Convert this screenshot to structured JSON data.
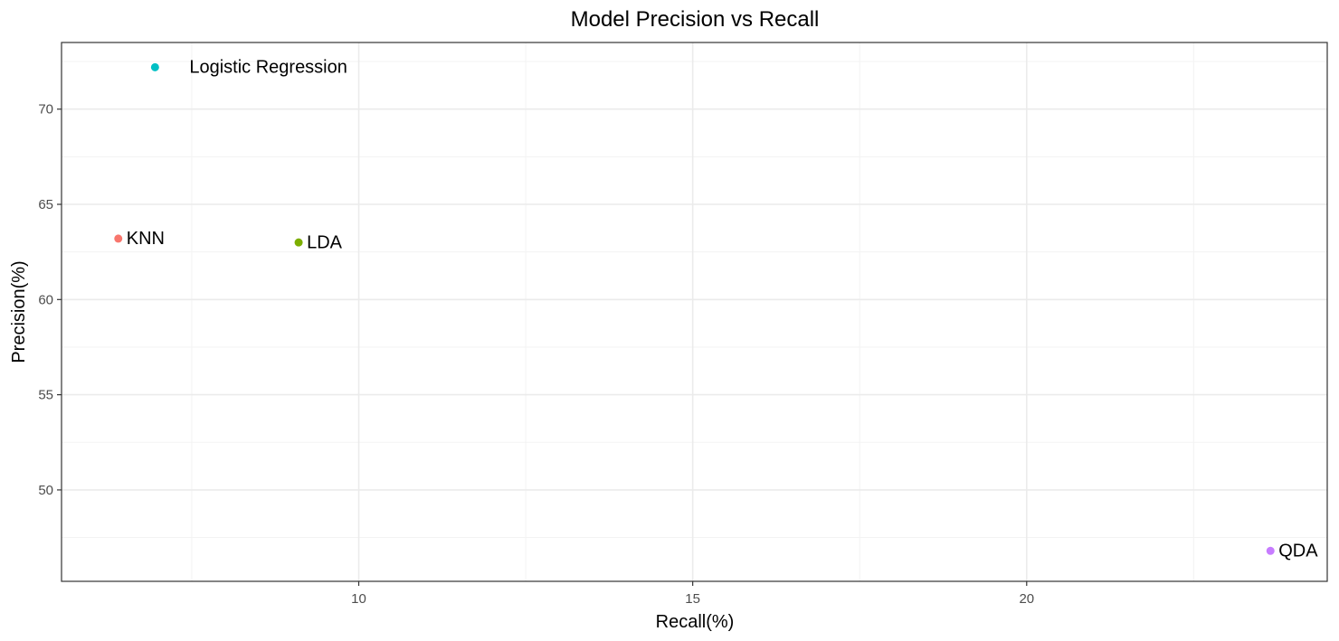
{
  "chart_data": {
    "type": "scatter",
    "title": "Model Precision vs Recall",
    "xlabel": "Recall(%)",
    "ylabel": "Precision(%)",
    "xlim": [
      5.55,
      24.5
    ],
    "ylim": [
      45.2,
      73.5
    ],
    "xticks": [
      10,
      15,
      20
    ],
    "yticks": [
      50,
      55,
      60,
      65,
      70
    ],
    "xminor": [
      7.5,
      12.5,
      17.5,
      22.5
    ],
    "yminor": [
      47.5,
      52.5,
      57.5,
      62.5,
      67.5,
      72.5
    ],
    "grid": true,
    "legend": "none",
    "points": [
      {
        "label": "KNN",
        "x": 6.4,
        "y": 63.2,
        "color": "#F8766D"
      },
      {
        "label": "LDA",
        "x": 9.1,
        "y": 63.0,
        "color": "#7CAE00"
      },
      {
        "label": "Logistic Regression",
        "x": 6.95,
        "y": 72.2,
        "color": "#00BFC4"
      },
      {
        "label": "QDA",
        "x": 23.65,
        "y": 46.8,
        "color": "#C77CFF"
      }
    ]
  }
}
